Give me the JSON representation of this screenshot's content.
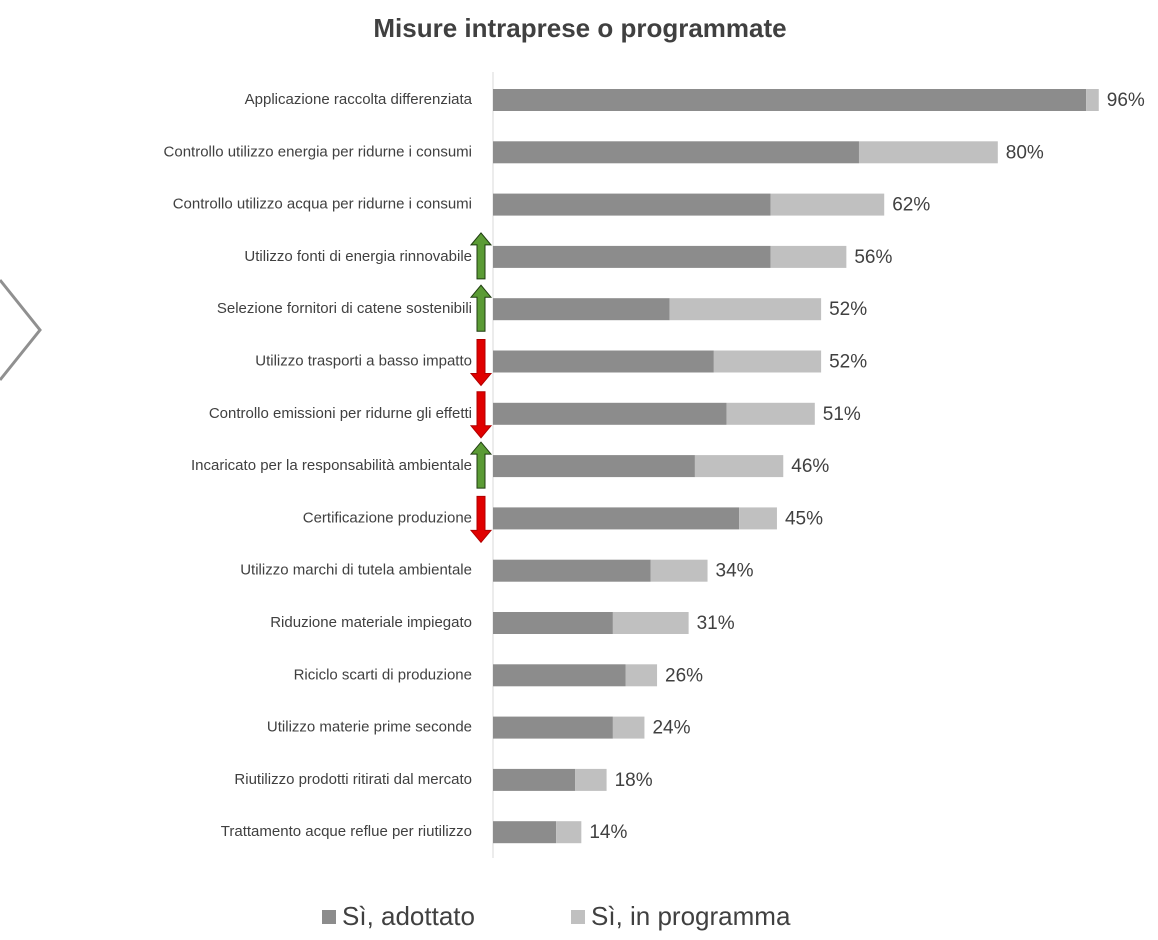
{
  "chart_data": {
    "type": "stacked-barh",
    "title": "Misure intraprese o programmate",
    "categories": [
      "Applicazione raccolta differenziata",
      "Controllo utilizzo energia per ridurne i consumi",
      "Controllo utilizzo acqua per ridurne i consumi",
      "Utilizzo fonti di energia rinnovabile",
      "Selezione fornitori di catene sostenibili",
      "Utilizzo trasporti a basso impatto",
      "Controllo emissioni per ridurne gli effetti",
      "Incaricato per la responsabilità ambientale",
      "Certificazione produzione",
      "Utilizzo marchi di tutela ambientale",
      "Riduzione materiale impiegato",
      "Riciclo scarti di produzione",
      "Utilizzo materie prime seconde",
      "Riutilizzo prodotti ritirati dal mercato",
      "Trattamento acque reflue per riutilizzo"
    ],
    "series": [
      {
        "name": "Sì, adottato",
        "color": "#8c8c8c",
        "values": [
          94,
          58,
          44,
          44,
          28,
          35,
          37,
          32,
          39,
          25,
          19,
          21,
          19,
          13,
          10
        ]
      },
      {
        "name": "Sì, in programma",
        "color": "#c0c0c0",
        "values": [
          2,
          22,
          18,
          12,
          24,
          17,
          14,
          14,
          6,
          9,
          12,
          5,
          5,
          5,
          4
        ]
      }
    ],
    "total_labels": [
      "96%",
      "80%",
      "62%",
      "56%",
      "52%",
      "52%",
      "51%",
      "46%",
      "45%",
      "34%",
      "31%",
      "26%",
      "24%",
      "18%",
      "14%"
    ],
    "trend_arrows": [
      {
        "row": 3,
        "direction": "up",
        "color": "#5b9b35"
      },
      {
        "row": 4,
        "direction": "up",
        "color": "#5b9b35"
      },
      {
        "row": 5,
        "direction": "down",
        "color": "#e00000"
      },
      {
        "row": 6,
        "direction": "down",
        "color": "#e00000"
      },
      {
        "row": 7,
        "direction": "up",
        "color": "#5b9b35"
      },
      {
        "row": 8,
        "direction": "down",
        "color": "#e00000"
      }
    ],
    "legend": "bottom"
  }
}
